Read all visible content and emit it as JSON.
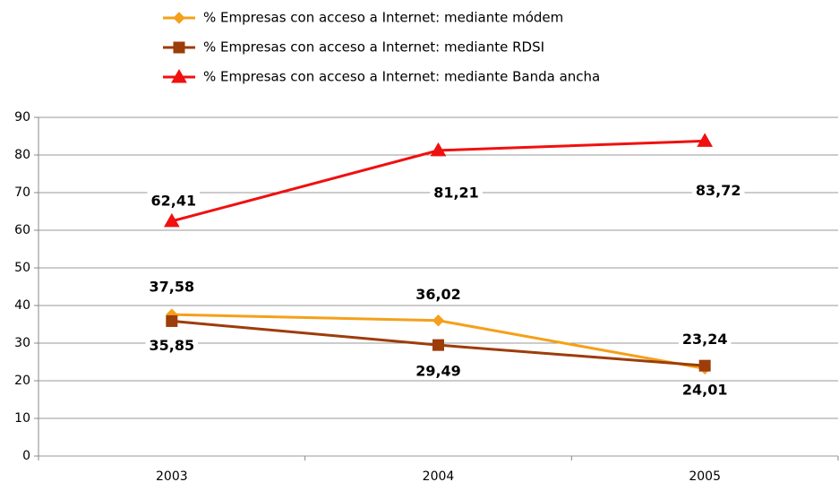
{
  "chart_data": {
    "type": "line",
    "categories": [
      "2003",
      "2004",
      "2005"
    ],
    "series": [
      {
        "name": "% Empresas con acceso a Internet: mediante módem",
        "color": "#f5a01a",
        "marker": "diamond",
        "values": [
          37.58,
          36.02,
          23.24
        ],
        "value_labels": [
          "37,58",
          "36,02",
          "23,24"
        ]
      },
      {
        "name": "% Empresas con acceso a Internet: mediante RDSI",
        "color": "#9c3d0a",
        "marker": "square",
        "values": [
          35.85,
          29.49,
          24.01
        ],
        "value_labels": [
          "35,85",
          "29,49",
          "24,01"
        ]
      },
      {
        "name": "% Empresas con acceso a Internet: mediante Banda ancha",
        "color": "#f01010",
        "marker": "triangle",
        "values": [
          62.41,
          81.21,
          83.72
        ],
        "value_labels": [
          "62,41",
          "81,21",
          "83,72"
        ]
      }
    ],
    "ylim": [
      0,
      90
    ],
    "yticks": [
      0,
      10,
      20,
      30,
      40,
      50,
      60,
      70,
      80,
      90
    ],
    "grid": true,
    "legend": "top"
  }
}
